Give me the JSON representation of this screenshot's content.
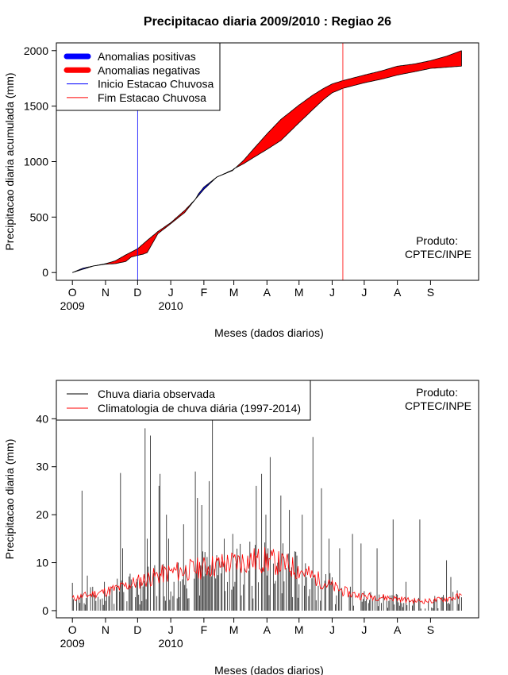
{
  "title": "Precipitacao diaria 2009/2010 : Regiao 26",
  "colors": {
    "positive": "#0000ff",
    "negative": "#ff0000",
    "observed": "#000000",
    "climatology": "#ff0000",
    "onset_line": "#0000ff",
    "end_line": "#ff0000"
  },
  "chart_data": [
    {
      "type": "area",
      "ylabel": "Precipitacao diaria acumulada (mm)",
      "xlabel": "Meses (dados diarios)",
      "x_ticks": [
        "O",
        "N",
        "D",
        "J",
        "F",
        "M",
        "A",
        "M",
        "J",
        "J",
        "A",
        "S"
      ],
      "x_tick_days": [
        0,
        31,
        61,
        92,
        123,
        151,
        182,
        212,
        243,
        273,
        304,
        335
      ],
      "year_labels": [
        {
          "day": 0,
          "label": "2009"
        },
        {
          "day": 92,
          "label": "2010"
        }
      ],
      "y_ticks": [
        0,
        500,
        1000,
        1500,
        2000
      ],
      "xlim": [
        -15,
        380
      ],
      "ylim": [
        -70,
        2070
      ],
      "legend": {
        "position": "top-left",
        "entries": [
          {
            "label": "Anomalias positivas",
            "color": "#0000ff",
            "style": "thick"
          },
          {
            "label": "Anomalias negativas",
            "color": "#ff0000",
            "style": "thick"
          },
          {
            "label": "Inicio Estacao Chuvosa",
            "color": "#0000ff",
            "style": "thin"
          },
          {
            "label": "Fim Estacao Chuvosa",
            "color": "#ff0000",
            "style": "thin"
          }
        ]
      },
      "annotation": [
        "Produto:",
        "CPTEC/INPE"
      ],
      "rainy_season_start_day": 61,
      "rainy_season_end_day": 253,
      "climatology_cumulative": {
        "days": [
          0,
          10,
          20,
          31,
          40,
          50,
          61,
          70,
          80,
          92,
          105,
          115,
          123,
          135,
          151,
          160,
          170,
          182,
          195,
          212,
          225,
          235,
          243,
          253,
          273,
          290,
          304,
          320,
          335,
          350,
          364
        ],
        "values": [
          0,
          30,
          60,
          80,
          105,
          160,
          215,
          290,
          370,
          450,
          560,
          660,
          750,
          860,
          930,
          1010,
          1120,
          1250,
          1380,
          1510,
          1600,
          1660,
          1700,
          1730,
          1780,
          1820,
          1860,
          1880,
          1910,
          1950,
          2000
        ]
      },
      "observed_cumulative": {
        "days": [
          0,
          5,
          10,
          20,
          31,
          40,
          50,
          55,
          61,
          66,
          70,
          80,
          92,
          105,
          115,
          118,
          123,
          135,
          150,
          151,
          160,
          170,
          182,
          195,
          212,
          225,
          235,
          243,
          253,
          273,
          290,
          304,
          320,
          335,
          350,
          364
        ],
        "values": [
          0,
          20,
          40,
          60,
          75,
          80,
          100,
          140,
          155,
          165,
          180,
          350,
          440,
          540,
          660,
          710,
          770,
          860,
          920,
          935,
          980,
          1040,
          1110,
          1190,
          1350,
          1470,
          1560,
          1620,
          1660,
          1710,
          1745,
          1780,
          1810,
          1840,
          1850,
          1860
        ]
      }
    },
    {
      "type": "bar",
      "ylabel": "Precipitacao diaria (mm)",
      "xlabel": "Meses (dados diarios)",
      "x_ticks": [
        "O",
        "N",
        "D",
        "J",
        "F",
        "M",
        "A",
        "M",
        "J",
        "J",
        "A",
        "S"
      ],
      "x_tick_days": [
        0,
        31,
        61,
        92,
        123,
        151,
        182,
        212,
        243,
        273,
        304,
        335
      ],
      "year_labels": [
        {
          "day": 0,
          "label": "2009"
        },
        {
          "day": 92,
          "label": "2010"
        }
      ],
      "y_ticks": [
        0,
        10,
        20,
        30,
        40
      ],
      "xlim": [
        -15,
        380
      ],
      "ylim": [
        -1.5,
        48
      ],
      "legend": {
        "position": "top-left",
        "entries": [
          {
            "label": "Chuva diaria observada",
            "color": "#000000",
            "style": "thin"
          },
          {
            "label": "Climatologia de chuva diária (1997-2014)",
            "color": "#ff0000",
            "style": "thin"
          }
        ]
      },
      "annotation": [
        "Produto:",
        "CPTEC/INPE"
      ],
      "observed_daily_peaks": [
        {
          "day": 0,
          "value": 5.8
        },
        {
          "day": 9,
          "value": 25
        },
        {
          "day": 14,
          "value": 7.3
        },
        {
          "day": 30,
          "value": 6
        },
        {
          "day": 37,
          "value": 5
        },
        {
          "day": 45,
          "value": 28.7
        },
        {
          "day": 47,
          "value": 13
        },
        {
          "day": 60,
          "value": 6
        },
        {
          "day": 68,
          "value": 38
        },
        {
          "day": 70,
          "value": 15
        },
        {
          "day": 73,
          "value": 36.5
        },
        {
          "day": 81,
          "value": 26
        },
        {
          "day": 82,
          "value": 28.5
        },
        {
          "day": 88,
          "value": 20
        },
        {
          "day": 90,
          "value": 15
        },
        {
          "day": 95,
          "value": 6
        },
        {
          "day": 99,
          "value": 10
        },
        {
          "day": 104,
          "value": 18
        },
        {
          "day": 115,
          "value": 29
        },
        {
          "day": 117,
          "value": 23.5
        },
        {
          "day": 121,
          "value": 22
        },
        {
          "day": 128,
          "value": 27
        },
        {
          "day": 131,
          "value": 40
        },
        {
          "day": 142,
          "value": 15
        },
        {
          "day": 150,
          "value": 16
        },
        {
          "day": 172,
          "value": 26
        },
        {
          "day": 177,
          "value": 28.5
        },
        {
          "day": 181,
          "value": 20
        },
        {
          "day": 185,
          "value": 32
        },
        {
          "day": 195,
          "value": 24
        },
        {
          "day": 203,
          "value": 21
        },
        {
          "day": 215,
          "value": 20
        },
        {
          "day": 225,
          "value": 36.2
        },
        {
          "day": 233,
          "value": 25.5
        },
        {
          "day": 240,
          "value": 15
        },
        {
          "day": 250,
          "value": 13
        },
        {
          "day": 262,
          "value": 16
        },
        {
          "day": 270,
          "value": 14
        },
        {
          "day": 285,
          "value": 13
        },
        {
          "day": 300,
          "value": 19
        },
        {
          "day": 312,
          "value": 6
        },
        {
          "day": 325,
          "value": 19
        },
        {
          "day": 350,
          "value": 10.5
        },
        {
          "day": 354,
          "value": 7
        },
        {
          "day": 362,
          "value": 3
        }
      ],
      "climatology_daily": {
        "days": [
          0,
          10,
          20,
          31,
          45,
          61,
          75,
          92,
          110,
          123,
          135,
          151,
          165,
          182,
          200,
          212,
          230,
          243,
          260,
          273,
          290,
          304,
          320,
          335,
          350,
          364
        ],
        "values": [
          2.5,
          3,
          3.5,
          4,
          4.8,
          6,
          7,
          8,
          8.5,
          9,
          9.5,
          10,
          10.5,
          10.5,
          9.5,
          8.5,
          6.5,
          5,
          3.5,
          3,
          2.8,
          2.5,
          2,
          2,
          2.5,
          3
        ]
      }
    }
  ]
}
